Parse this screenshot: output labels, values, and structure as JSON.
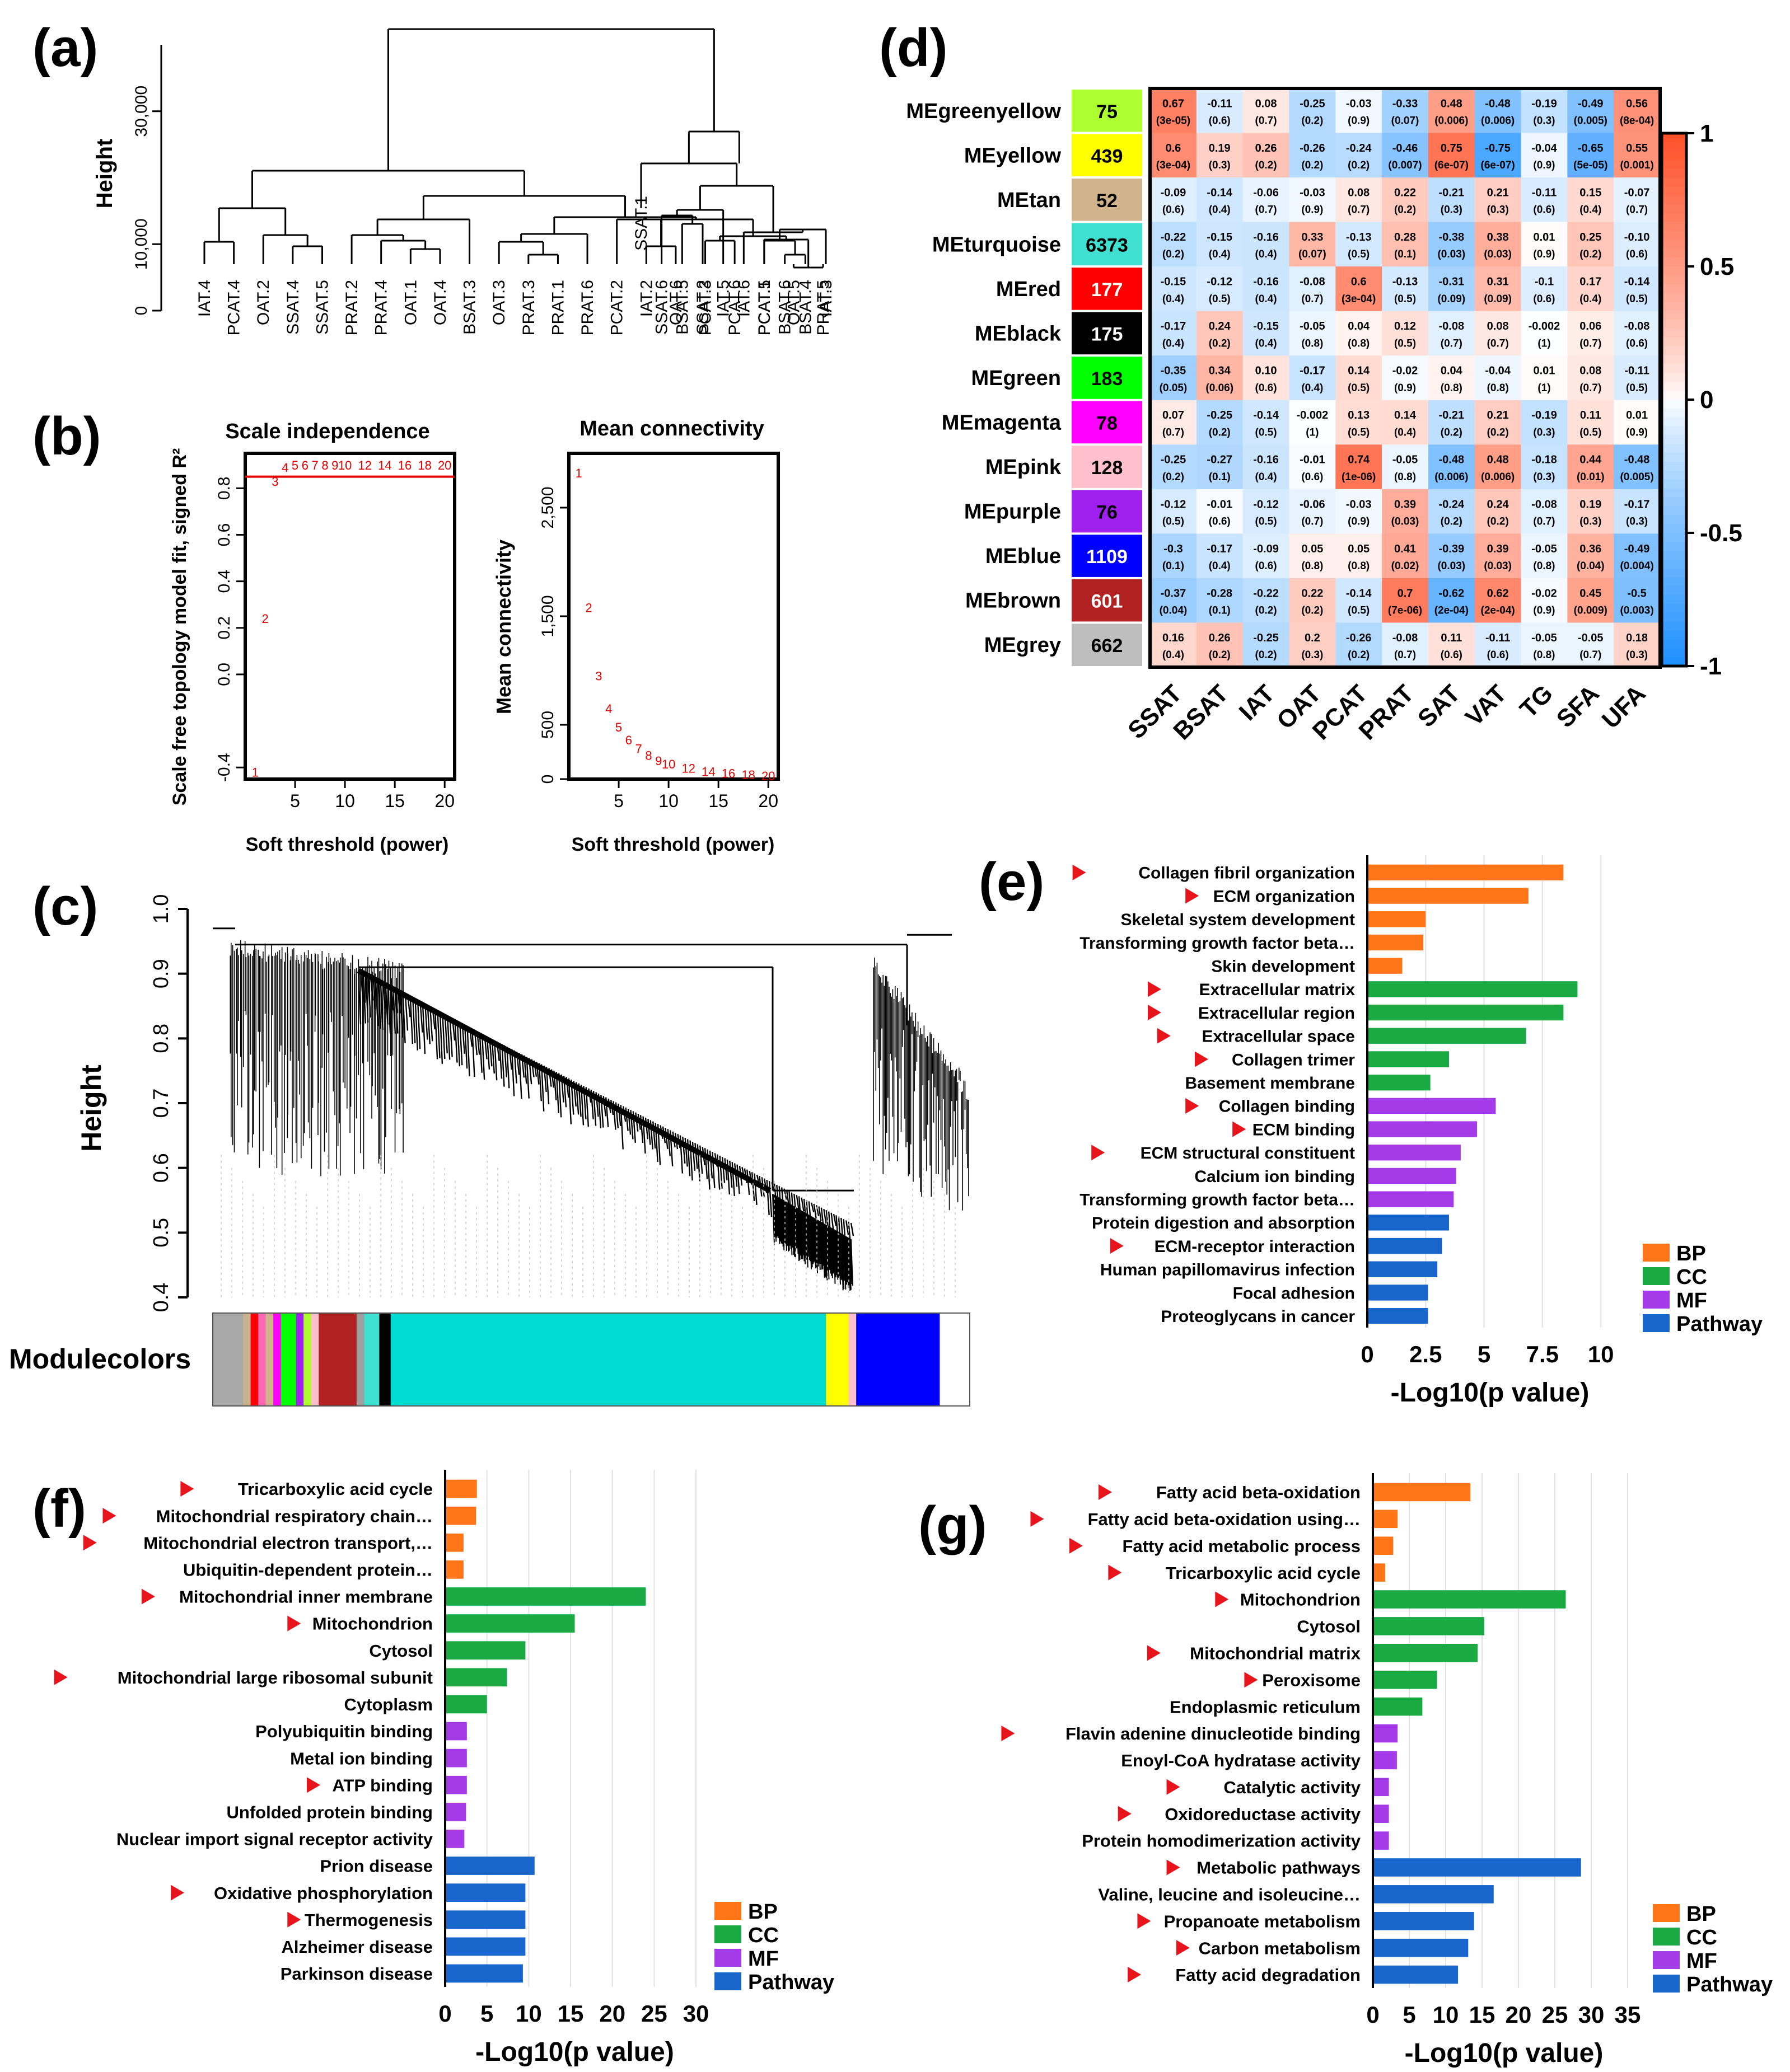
{
  "panel_labels": {
    "a": "(a)",
    "b": "(b)",
    "c": "(c)",
    "d": "(d)",
    "e": "(e)",
    "f": "(f)",
    "g": "(g)"
  },
  "chart_data": [
    {
      "id": "a",
      "type": "dendrogram",
      "ylabel": "Height",
      "yticks": [
        "0",
        "10,000",
        "30,000"
      ],
      "yvalues": [
        0,
        10000,
        30000
      ],
      "ylim": [
        0,
        40000
      ],
      "leaves_left": [
        "IAT.4",
        "PCAT.4",
        "OAT.2",
        "SSAT.4",
        "SSAT.5",
        "PRAT.2",
        "PRAT.4",
        "OAT.1",
        "OAT.4",
        "BSAT.3",
        "OAT.3",
        "PRAT.3",
        "PRAT.1",
        "PRAT.6",
        "PCAT.2",
        "IAT.2",
        "OAT.6",
        "PCAT.3",
        "PCAT.6",
        "PCAT.5",
        "OAT.5",
        "PRAT.5"
      ],
      "leaves_right": [
        "SSAT.1",
        "SSAT.6",
        "BSAT.5",
        "SSAT.2",
        "IAT.5",
        "IAT.6",
        "PCAT.1",
        "BSAT.6",
        "BSAT.4",
        "IAT.3"
      ]
    },
    {
      "id": "b1",
      "type": "scatter",
      "title": "Scale independence",
      "xlabel": "Soft threshold (power)",
      "ylabel": "Scale free topology model fit, signed R²",
      "xticks": [
        "5",
        "10",
        "15",
        "20"
      ],
      "yticks": [
        "-0.4",
        "0.0",
        "0.2",
        "0.4",
        "0.6",
        "0.8"
      ],
      "xlim": [
        0,
        21
      ],
      "ylim": [
        -0.45,
        0.95
      ],
      "cutoff": 0.85,
      "x": [
        1,
        2,
        3,
        4,
        5,
        6,
        7,
        8,
        9,
        10,
        12,
        14,
        16,
        18,
        20
      ],
      "y": [
        -0.42,
        0.24,
        0.83,
        0.89,
        0.9,
        0.9,
        0.9,
        0.9,
        0.9,
        0.9,
        0.9,
        0.9,
        0.9,
        0.9,
        0.9
      ],
      "point_labels": [
        "1",
        "2",
        "3",
        "4",
        "5",
        "6",
        "7",
        "8",
        "9",
        "10",
        "12",
        "14",
        "16",
        "18",
        "20"
      ]
    },
    {
      "id": "b2",
      "type": "scatter",
      "title": "Mean connectivity",
      "xlabel": "Soft threshold (power)",
      "ylabel": "Mean connectivity",
      "xticks": [
        "5",
        "10",
        "15",
        "20"
      ],
      "yticks": [
        "0",
        "500",
        "1,500",
        "2,500"
      ],
      "xlim": [
        0,
        21
      ],
      "ylim": [
        0,
        3000
      ],
      "x": [
        1,
        2,
        3,
        4,
        5,
        6,
        7,
        8,
        9,
        10,
        12,
        14,
        16,
        18,
        20
      ],
      "y": [
        2820,
        1580,
        950,
        650,
        480,
        360,
        280,
        220,
        170,
        140,
        100,
        70,
        55,
        40,
        30
      ],
      "point_labels": [
        "1",
        "2",
        "3",
        "4",
        "5",
        "6",
        "7",
        "8",
        "9",
        "10",
        "12",
        "14",
        "16",
        "18",
        "20"
      ]
    },
    {
      "id": "c",
      "type": "dendrogram",
      "ylabel": "Height",
      "yticks": [
        "0.4",
        "0.5",
        "0.6",
        "0.7",
        "0.8",
        "0.9",
        "1.0"
      ],
      "ylim": [
        0.4,
        1.0
      ],
      "colorbar_label": "Modulecolors",
      "module_colors": [
        {
          "color": "#a8a8a8",
          "share": 0.04
        },
        {
          "color": "#c8b48c",
          "share": 0.01
        },
        {
          "color": "#ff0000",
          "share": 0.01
        },
        {
          "color": "#ff69b4",
          "share": 0.01
        },
        {
          "color": "#d2b48c",
          "share": 0.01
        },
        {
          "color": "#ff00ff",
          "share": 0.01
        },
        {
          "color": "#00ff00",
          "share": 0.02
        },
        {
          "color": "#a020f0",
          "share": 0.01
        },
        {
          "color": "#adff2f",
          "share": 0.01
        },
        {
          "color": "#ffc0cb",
          "share": 0.01
        },
        {
          "color": "#b22222",
          "share": 0.05
        },
        {
          "color": "#a0a0a0",
          "share": 0.01
        },
        {
          "color": "#40e0d0",
          "share": 0.02
        },
        {
          "color": "#000000",
          "share": 0.015
        },
        {
          "color": "#00ddd0",
          "share": 0.575
        },
        {
          "color": "#ffff00",
          "share": 0.03
        },
        {
          "color": "#ffc0cb",
          "share": 0.01
        },
        {
          "color": "#0000ff",
          "share": 0.11
        }
      ]
    },
    {
      "id": "d",
      "type": "heatmap",
      "columns": [
        "SSAT",
        "BSAT",
        "IAT",
        "OAT",
        "PCAT",
        "PRAT",
        "SAT",
        "VAT",
        "TG",
        "SFA",
        "UFA"
      ],
      "rows": [
        {
          "name": "MEgreenyellow",
          "color": "#adff2f",
          "count": "75",
          "r": [
            "0.67",
            "-0.11",
            "0.08",
            "-0.25",
            "-0.03",
            "-0.33",
            "0.48",
            "-0.48",
            "-0.19",
            "-0.49",
            "0.56"
          ],
          "p": [
            "(3e-05)",
            "(0.6)",
            "(0.7)",
            "(0.2)",
            "(0.9)",
            "(0.07)",
            "(0.006)",
            "(0.006)",
            "(0.3)",
            "(0.005)",
            "(8e-04)"
          ]
        },
        {
          "name": "MEyellow",
          "color": "#ffff00",
          "count": "439",
          "r": [
            "0.6",
            "0.19",
            "0.26",
            "-0.26",
            "-0.24",
            "-0.46",
            "0.75",
            "-0.75",
            "-0.04",
            "-0.65",
            "0.55"
          ],
          "p": [
            "(3e-04)",
            "(0.3)",
            "(0.2)",
            "(0.2)",
            "(0.2)",
            "(0.007)",
            "(6e-07)",
            "(6e-07)",
            "(0.9)",
            "(5e-05)",
            "(0.001)"
          ]
        },
        {
          "name": "MEtan",
          "color": "#d2b48c",
          "count": "52",
          "r": [
            "-0.09",
            "-0.14",
            "-0.06",
            "-0.03",
            "0.08",
            "0.22",
            "-0.21",
            "0.21",
            "-0.11",
            "0.15",
            "-0.07"
          ],
          "p": [
            "(0.6)",
            "(0.4)",
            "(0.7)",
            "(0.9)",
            "(0.7)",
            "(0.2)",
            "(0.3)",
            "(0.3)",
            "(0.6)",
            "(0.4)",
            "(0.7)"
          ]
        },
        {
          "name": "MEturquoise",
          "color": "#40e0d0",
          "count": "6373",
          "r": [
            "-0.22",
            "-0.15",
            "-0.16",
            "0.33",
            "-0.13",
            "0.28",
            "-0.38",
            "0.38",
            "0.01",
            "0.25",
            "-0.10"
          ],
          "p": [
            "(0.2)",
            "(0.4)",
            "(0.4)",
            "(0.07)",
            "(0.5)",
            "(0.1)",
            "(0.03)",
            "(0.03)",
            "(0.9)",
            "(0.2)",
            "(0.6)"
          ]
        },
        {
          "name": "MEred",
          "color": "#ff0000",
          "count": "177",
          "r": [
            "-0.15",
            "-0.12",
            "-0.16",
            "-0.08",
            "0.6",
            "-0.13",
            "-0.31",
            "0.31",
            "-0.1",
            "0.17",
            "-0.14"
          ],
          "p": [
            "(0.4)",
            "(0.5)",
            "(0.4)",
            "(0.7)",
            "(3e-04)",
            "(0.5)",
            "(0.09)",
            "(0.09)",
            "(0.6)",
            "(0.4)",
            "(0.5)"
          ]
        },
        {
          "name": "MEblack",
          "color": "#000000",
          "count": "175",
          "r": [
            "-0.17",
            "0.24",
            "-0.15",
            "-0.05",
            "0.04",
            "0.12",
            "-0.08",
            "0.08",
            "-0.002",
            "0.06",
            "-0.08"
          ],
          "p": [
            "(0.4)",
            "(0.2)",
            "(0.4)",
            "(0.8)",
            "(0.8)",
            "(0.5)",
            "(0.7)",
            "(0.7)",
            "(1)",
            "(0.7)",
            "(0.6)"
          ]
        },
        {
          "name": "MEgreen",
          "color": "#00ff00",
          "count": "183",
          "r": [
            "-0.35",
            "0.34",
            "0.10",
            "-0.17",
            "0.14",
            "-0.02",
            "0.04",
            "-0.04",
            "0.01",
            "0.08",
            "-0.11"
          ],
          "p": [
            "(0.05)",
            "(0.06)",
            "(0.6)",
            "(0.4)",
            "(0.5)",
            "(0.9)",
            "(0.8)",
            "(0.8)",
            "(1)",
            "(0.7)",
            "(0.5)"
          ]
        },
        {
          "name": "MEmagenta",
          "color": "#ff00ff",
          "count": "78",
          "r": [
            "0.07",
            "-0.25",
            "-0.14",
            "-0.002",
            "0.13",
            "0.14",
            "-0.21",
            "0.21",
            "-0.19",
            "0.11",
            "0.01"
          ],
          "p": [
            "(0.7)",
            "(0.2)",
            "(0.5)",
            "(1)",
            "(0.5)",
            "(0.4)",
            "(0.2)",
            "(0.2)",
            "(0.3)",
            "(0.5)",
            "(0.9)"
          ]
        },
        {
          "name": "MEpink",
          "color": "#ffc0cb",
          "count": "128",
          "r": [
            "-0.25",
            "-0.27",
            "-0.16",
            "-0.01",
            "0.74",
            "-0.05",
            "-0.48",
            "0.48",
            "-0.18",
            "0.44",
            "-0.48"
          ],
          "p": [
            "(0.2)",
            "(0.1)",
            "(0.4)",
            "(0.6)",
            "(1e-06)",
            "(0.8)",
            "(0.006)",
            "(0.006)",
            "(0.3)",
            "(0.01)",
            "(0.005)"
          ]
        },
        {
          "name": "MEpurple",
          "color": "#a020f0",
          "count": "76",
          "r": [
            "-0.12",
            "-0.01",
            "-0.12",
            "-0.06",
            "-0.03",
            "0.39",
            "-0.24",
            "0.24",
            "-0.08",
            "0.19",
            "-0.17"
          ],
          "p": [
            "(0.5)",
            "(0.6)",
            "(0.5)",
            "(0.7)",
            "(0.9)",
            "(0.03)",
            "(0.2)",
            "(0.2)",
            "(0.7)",
            "(0.3)",
            "(0.3)"
          ]
        },
        {
          "name": "MEblue",
          "color": "#0000ff",
          "count": "1109",
          "r": [
            "-0.3",
            "-0.17",
            "-0.09",
            "0.05",
            "0.05",
            "0.41",
            "-0.39",
            "0.39",
            "-0.05",
            "0.36",
            "-0.49"
          ],
          "p": [
            "(0.1)",
            "(0.4)",
            "(0.6)",
            "(0.8)",
            "(0.8)",
            "(0.02)",
            "(0.03)",
            "(0.03)",
            "(0.8)",
            "(0.04)",
            "(0.004)"
          ]
        },
        {
          "name": "MEbrown",
          "color": "#b22222",
          "count": "601",
          "r": [
            "-0.37",
            "-0.28",
            "-0.22",
            "0.22",
            "-0.14",
            "0.7",
            "-0.62",
            "0.62",
            "-0.02",
            "0.45",
            "-0.5"
          ],
          "p": [
            "(0.04)",
            "(0.1)",
            "(0.2)",
            "(0.2)",
            "(0.5)",
            "(7e-06)",
            "(2e-04)",
            "(2e-04)",
            "(0.9)",
            "(0.009)",
            "(0.003)"
          ]
        },
        {
          "name": "MEgrey",
          "color": "#bebebe",
          "count": "662",
          "r": [
            "0.16",
            "0.26",
            "-0.25",
            "0.2",
            "-0.26",
            "-0.08",
            "0.11",
            "-0.11",
            "-0.05",
            "-0.05",
            "0.18"
          ],
          "p": [
            "(0.4)",
            "(0.2)",
            "(0.2)",
            "(0.3)",
            "(0.2)",
            "(0.7)",
            "(0.6)",
            "(0.6)",
            "(0.8)",
            "(0.7)",
            "(0.3)"
          ]
        }
      ],
      "colorbar_ticks": [
        "1",
        "0.5",
        "0",
        "-0.5",
        "-1"
      ],
      "colorbar_values": [
        1,
        0.5,
        0,
        -0.5,
        -1
      ]
    },
    {
      "id": "e",
      "type": "bar",
      "orientation": "horizontal",
      "xlabel": "-Log10(p value)",
      "xticks": [
        "0",
        "2.5",
        "5",
        "7.5",
        "10"
      ],
      "xtick_values": [
        0,
        2.5,
        5,
        7.5,
        10
      ],
      "xlim": [
        0,
        10.5
      ],
      "legend": [
        "BP",
        "CC",
        "MF",
        "Pathway"
      ],
      "categories": [
        "Collagen fibril organization",
        "ECM organization",
        "Skeletal system development",
        "Transforming growth factor beta…",
        "Skin development",
        "Extracellular matrix",
        "Extracellular region",
        "Extracellular space",
        "Collagen trimer",
        "Basement membrane",
        "Collagen binding",
        "ECM binding",
        "ECM structural constituent",
        "Calcium ion binding",
        "Transforming growth factor beta…",
        "Protein digestion and absorption",
        "ECM-receptor interaction",
        "Human papillomavirus infection",
        "Focal adhesion",
        "Proteoglycans in cancer"
      ],
      "groups": [
        "BP",
        "BP",
        "BP",
        "BP",
        "BP",
        "CC",
        "CC",
        "CC",
        "CC",
        "CC",
        "MF",
        "MF",
        "MF",
        "MF",
        "MF",
        "Pathway",
        "Pathway",
        "Pathway",
        "Pathway",
        "Pathway"
      ],
      "marked": [
        true,
        true,
        false,
        false,
        false,
        true,
        true,
        true,
        true,
        false,
        true,
        true,
        true,
        false,
        false,
        false,
        true,
        false,
        false,
        false
      ],
      "values": [
        8.4,
        6.9,
        2.5,
        2.4,
        1.5,
        9.0,
        8.4,
        6.8,
        3.5,
        2.7,
        5.5,
        4.7,
        4.0,
        3.8,
        3.7,
        3.5,
        3.2,
        3.0,
        2.6,
        2.6
      ]
    },
    {
      "id": "f",
      "type": "bar",
      "orientation": "horizontal",
      "xlabel": "-Log10(p value)",
      "xticks": [
        "0",
        "5",
        "10",
        "15",
        "20",
        "25",
        "30"
      ],
      "xtick_values": [
        0,
        5,
        10,
        15,
        20,
        25,
        30
      ],
      "xlim": [
        0,
        31
      ],
      "legend": [
        "BP",
        "CC",
        "MF",
        "Pathway"
      ],
      "categories": [
        "Tricarboxylic acid cycle",
        "Mitochondrial respiratory chain…",
        "Mitochondrial electron transport,…",
        "Ubiquitin-dependent protein…",
        "Mitochondrial inner membrane",
        "Mitochondrion",
        "Cytosol",
        "Mitochondrial large ribosomal subunit",
        "Cytoplasm",
        "Polyubiquitin binding",
        "Metal ion binding",
        "ATP binding",
        "Unfolded protein binding",
        "Nuclear import signal receptor activity",
        "Prion disease",
        "Oxidative phosphorylation",
        "Thermogenesis",
        "Alzheimer disease",
        "Parkinson disease"
      ],
      "groups": [
        "BP",
        "BP",
        "BP",
        "BP",
        "CC",
        "CC",
        "CC",
        "CC",
        "CC",
        "MF",
        "MF",
        "MF",
        "MF",
        "MF",
        "Pathway",
        "Pathway",
        "Pathway",
        "Pathway",
        "Pathway"
      ],
      "marked": [
        true,
        true,
        true,
        false,
        true,
        true,
        false,
        true,
        false,
        false,
        false,
        true,
        false,
        false,
        false,
        true,
        true,
        false,
        false
      ],
      "values": [
        3.8,
        3.7,
        2.2,
        2.2,
        24.0,
        15.5,
        9.6,
        7.4,
        5.0,
        2.6,
        2.6,
        2.6,
        2.5,
        2.3,
        10.7,
        9.6,
        9.6,
        9.6,
        9.3
      ]
    },
    {
      "id": "g",
      "type": "bar",
      "orientation": "horizontal",
      "xlabel": "-Log10(p value)",
      "xticks": [
        "0",
        "5",
        "10",
        "15",
        "20",
        "25",
        "30",
        "35"
      ],
      "xtick_values": [
        0,
        5,
        10,
        15,
        20,
        25,
        30,
        35
      ],
      "xlim": [
        0,
        36
      ],
      "legend": [
        "BP",
        "CC",
        "MF",
        "Pathway"
      ],
      "categories": [
        "Fatty acid beta-oxidation",
        "Fatty acid beta-oxidation using…",
        "Fatty acid metabolic process",
        "Tricarboxylic acid cycle",
        "Mitochondrion",
        "Cytosol",
        "Mitochondrial matrix",
        "Peroxisome",
        "Endoplasmic reticulum",
        "Flavin adenine dinucleotide binding",
        "Enoyl-CoA hydratase activity",
        "Catalytic activity",
        "Oxidoreductase activity",
        "Protein homodimerization activity",
        "Metabolic pathways",
        "Valine, leucine and isoleucine…",
        "Propanoate metabolism",
        "Carbon metabolism",
        "Fatty acid degradation"
      ],
      "groups": [
        "BP",
        "BP",
        "BP",
        "BP",
        "CC",
        "CC",
        "CC",
        "CC",
        "CC",
        "MF",
        "MF",
        "MF",
        "MF",
        "MF",
        "Pathway",
        "Pathway",
        "Pathway",
        "Pathway",
        "Pathway"
      ],
      "marked": [
        true,
        true,
        true,
        true,
        true,
        false,
        true,
        true,
        false,
        true,
        false,
        true,
        true,
        false,
        true,
        false,
        true,
        true,
        true
      ],
      "values": [
        13.4,
        3.4,
        2.8,
        1.7,
        26.5,
        15.3,
        14.4,
        8.8,
        6.8,
        3.4,
        3.3,
        2.2,
        2.2,
        2.2,
        28.6,
        16.6,
        13.9,
        13.1,
        11.7
      ]
    }
  ],
  "group_colors": {
    "BP": "#ff7518",
    "CC": "#1aaa44",
    "MF": "#a43ae8",
    "Pathway": "#1866cc"
  }
}
